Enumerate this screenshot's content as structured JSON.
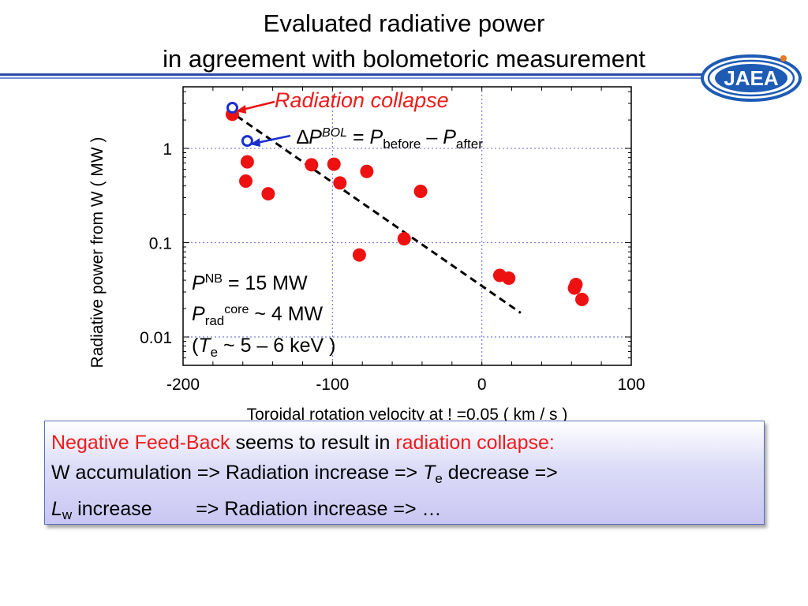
{
  "slide": {
    "title_line1": "Evaluated radiative power",
    "title_line2": "in agreement with bolometoric measurement",
    "logo_text": "JAEA"
  },
  "annotations": {
    "radiation_collapse": "Radiation collapse",
    "delta_symbol": "∆",
    "p": "P",
    "bol_sup": "BOL",
    "eq": " = ",
    "before_sub": "before",
    "minus": " – ",
    "after_sub": "after",
    "nb_sup": "NB",
    "nb_value": " = 15 MW",
    "rad_sub": "rad",
    "core_sup": "core",
    "core_value": " ~ 4 MW",
    "te_open": "(",
    "t": "T",
    "e_sub": "e",
    "te_value": " ~ 5 – 6 keV )"
  },
  "summary": {
    "line1_red1": "Negative Feed-Back",
    "line1_black": " seems to result in ",
    "line1_red2": "radiation collapse:",
    "line2_a": "W accumulation => Radiation increase => ",
    "line2_T": "T",
    "line2_e": "e",
    "line2_b": " decrease =>",
    "line3_L": "L",
    "line3_w": "w",
    "line3_a": " increase        => Radiation increase => …"
  },
  "chart_data": {
    "type": "scatter",
    "xlabel": "Toroidal rotation velocity at ! =0.05  ( km / s )",
    "ylabel": "Radiative power from W  ( MW )",
    "xlim": [
      -200,
      100
    ],
    "ylim": [
      0.005,
      4.5
    ],
    "yscale": "log",
    "xticks": [
      -200,
      -100,
      0,
      100
    ],
    "xtick_labels": [
      "-200",
      "-100",
      "0",
      "100"
    ],
    "yticks": [
      0.01,
      0.1,
      1
    ],
    "ytick_labels": [
      "0.01",
      "0.1",
      "1"
    ],
    "grid": true,
    "colors": {
      "evaluated": "#ee1111",
      "bolometer": "#1a2fd0",
      "fit": "#000000",
      "grid": "#7b7be0",
      "collapse_arrow": "#ee1111"
    },
    "series": [
      {
        "kind": "filled",
        "x": [
          -167,
          -157,
          -158,
          -143,
          -114,
          -99,
          -95,
          -77,
          -41,
          -52,
          -82,
          12,
          18,
          62,
          63,
          67
        ],
        "y": [
          2.3,
          0.72,
          0.45,
          0.33,
          0.67,
          0.68,
          0.43,
          0.57,
          0.35,
          0.11,
          0.074,
          0.045,
          0.042,
          0.033,
          0.036,
          0.025
        ]
      },
      {
        "kind": "open",
        "x": [
          -167,
          -157
        ],
        "y": [
          2.7,
          1.2
        ]
      }
    ],
    "fit_line": {
      "x": [
        -164,
        26
      ],
      "y": [
        2.2,
        0.018
      ]
    }
  }
}
